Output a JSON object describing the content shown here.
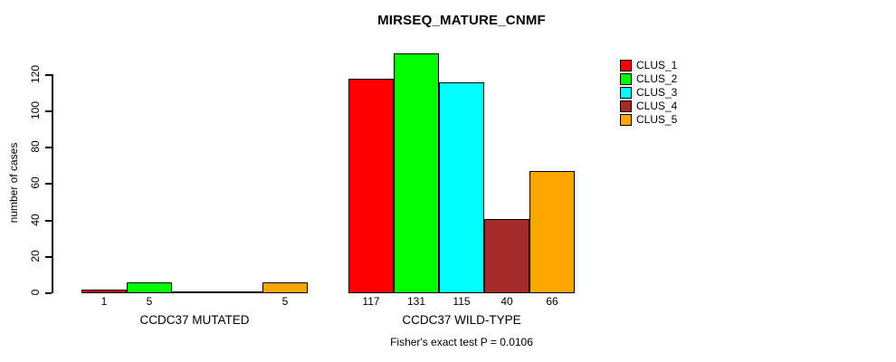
{
  "chart_data": {
    "type": "bar",
    "title": "MIRSEQ_MATURE_CNMF",
    "ylabel": "number of cases",
    "xlabel": "",
    "ylim": [
      0,
      120
    ],
    "yticks": [
      0,
      20,
      40,
      60,
      80,
      100,
      120
    ],
    "grid": false,
    "legend_position": "top-right",
    "series": [
      {
        "name": "CLUS_1",
        "color": "#FF0000"
      },
      {
        "name": "CLUS_2",
        "color": "#00FF00"
      },
      {
        "name": "CLUS_3",
        "color": "#00FFFF"
      },
      {
        "name": "CLUS_4",
        "color": "#A52A2A"
      },
      {
        "name": "CLUS_5",
        "color": "#FFA500"
      }
    ],
    "groups": [
      {
        "label": "CCDC37 MUTATED",
        "values": [
          1,
          5,
          0,
          0,
          5
        ],
        "bar_labels": [
          "1",
          "5",
          "",
          "",
          "5"
        ]
      },
      {
        "label": "CCDC37 WILD-TYPE",
        "values": [
          117,
          131,
          115,
          40,
          66
        ],
        "bar_labels": [
          "117",
          "131",
          "115",
          "40",
          "66"
        ]
      }
    ],
    "subtitle": "Fisher's exact test P = 0.0106"
  }
}
